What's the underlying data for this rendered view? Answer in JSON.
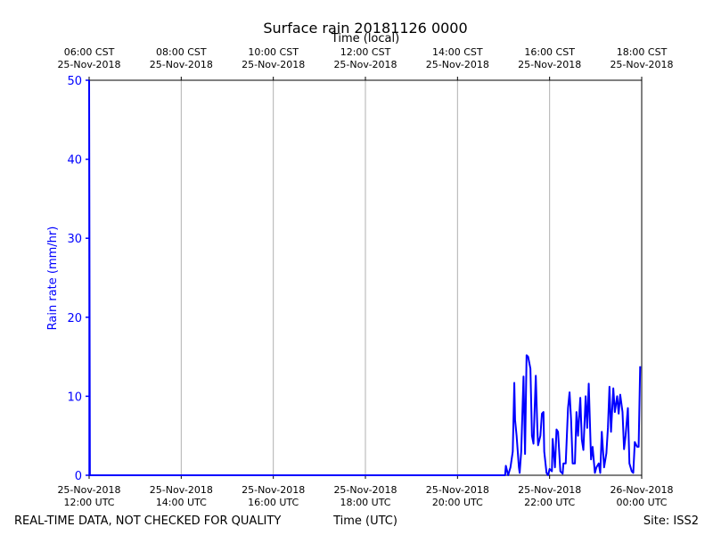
{
  "chart_data": {
    "type": "line",
    "title": "Surface rain 20181126 0000",
    "x_label": "Time (UTC)",
    "x2_label": "Time (local)",
    "y_label": "Rain rate (mm/hr)",
    "footer_left": "REAL-TIME DATA, NOT CHECKED FOR QUALITY",
    "footer_right": "Site: ISS2",
    "xlim": [
      "2018-11-25T12:00",
      "2018-11-26T00:00"
    ],
    "xticks": [
      {
        "value": "2018-11-25T12:00",
        "label": "25-Nov-2018\n12:00 UTC"
      },
      {
        "value": "2018-11-25T14:00",
        "label": "25-Nov-2018\n14:00 UTC"
      },
      {
        "value": "2018-11-25T16:00",
        "label": "25-Nov-2018\n16:00 UTC"
      },
      {
        "value": "2018-11-25T18:00",
        "label": "25-Nov-2018\n18:00 UTC"
      },
      {
        "value": "2018-11-25T20:00",
        "label": "25-Nov-2018\n20:00 UTC"
      },
      {
        "value": "2018-11-25T22:00",
        "label": "25-Nov-2018\n22:00 UTC"
      },
      {
        "value": "2018-11-26T00:00",
        "label": "26-Nov-2018\n00:00 UTC"
      }
    ],
    "x2ticks": [
      {
        "value": "2018-11-25T12:00",
        "label": "06:00 CST\n25-Nov-2018"
      },
      {
        "value": "2018-11-25T14:00",
        "label": "08:00 CST\n25-Nov-2018"
      },
      {
        "value": "2018-11-25T16:00",
        "label": "10:00 CST\n25-Nov-2018"
      },
      {
        "value": "2018-11-25T18:00",
        "label": "12:00 CST\n25-Nov-2018"
      },
      {
        "value": "2018-11-25T20:00",
        "label": "14:00 CST\n25-Nov-2018"
      },
      {
        "value": "2018-11-25T22:00",
        "label": "16:00 CST\n25-Nov-2018"
      },
      {
        "value": "2018-11-26T00:00",
        "label": "18:00 CST\n25-Nov-2018"
      }
    ],
    "ylim": [
      0,
      50
    ],
    "yticks": [
      0,
      10,
      20,
      30,
      40,
      50
    ],
    "grid": "x",
    "color": "#0000ff",
    "x": [
      "2018-11-25T12:00",
      "2018-11-25T12:01",
      "2018-11-25T21:02",
      "2018-11-25T21:03",
      "2018-11-25T21:06",
      "2018-11-25T21:09",
      "2018-11-25T21:12",
      "2018-11-25T21:14",
      "2018-11-25T21:15",
      "2018-11-25T21:17",
      "2018-11-25T21:20",
      "2018-11-25T21:21",
      "2018-11-25T21:23",
      "2018-11-25T21:26",
      "2018-11-25T21:28",
      "2018-11-25T21:30",
      "2018-11-25T21:32",
      "2018-11-25T21:35",
      "2018-11-25T21:37",
      "2018-11-25T21:39",
      "2018-11-25T21:42",
      "2018-11-25T21:44",
      "2018-11-25T21:45",
      "2018-11-25T21:48",
      "2018-11-25T21:50",
      "2018-11-25T21:52",
      "2018-11-25T21:53",
      "2018-11-25T21:56",
      "2018-11-25T21:58",
      "2018-11-25T22:00",
      "2018-11-25T22:03",
      "2018-11-25T22:04",
      "2018-11-25T22:07",
      "2018-11-25T22:09",
      "2018-11-25T22:11",
      "2018-11-25T22:14",
      "2018-11-25T22:17",
      "2018-11-25T22:18",
      "2018-11-25T22:21",
      "2018-11-25T22:24",
      "2018-11-25T22:26",
      "2018-11-25T22:28",
      "2018-11-25T22:30",
      "2018-11-25T22:33",
      "2018-11-25T22:35",
      "2018-11-25T22:37",
      "2018-11-25T22:40",
      "2018-11-25T22:42",
      "2018-11-25T22:44",
      "2018-11-25T22:47",
      "2018-11-25T22:49",
      "2018-11-25T22:51",
      "2018-11-25T22:54",
      "2018-11-25T22:56",
      "2018-11-25T22:59",
      "2018-11-25T23:01",
      "2018-11-25T23:04",
      "2018-11-25T23:06",
      "2018-11-25T23:08",
      "2018-11-25T23:11",
      "2018-11-25T23:14",
      "2018-11-25T23:16",
      "2018-11-25T23:18",
      "2018-11-25T23:20",
      "2018-11-25T23:23",
      "2018-11-25T23:25",
      "2018-11-25T23:28",
      "2018-11-25T23:30",
      "2018-11-25T23:32",
      "2018-11-25T23:35",
      "2018-11-25T23:37",
      "2018-11-25T23:39",
      "2018-11-25T23:42",
      "2018-11-25T23:44",
      "2018-11-25T23:47",
      "2018-11-25T23:49",
      "2018-11-25T23:51",
      "2018-11-25T23:54",
      "2018-11-25T23:56",
      "2018-11-25T23:58"
    ],
    "values": [
      50,
      0,
      0,
      1.2,
      0,
      1,
      3,
      11.7,
      7,
      5,
      1,
      0.3,
      3,
      12.5,
      2.7,
      15.2,
      15,
      13.5,
      5,
      4,
      12.6,
      6,
      3.8,
      5,
      7.8,
      8,
      3,
      0.3,
      0,
      0.8,
      0.5,
      4.6,
      1,
      5.8,
      5.5,
      0.5,
      0.2,
      1.5,
      1.5,
      8.5,
      10.5,
      7,
      1.5,
      1.5,
      8,
      5,
      9.8,
      4.5,
      3.2,
      10,
      6,
      11.6,
      2,
      3.6,
      0.3,
      1,
      1.5,
      0.3,
      5.5,
      1,
      2.8,
      6,
      11.2,
      5.5,
      11,
      8,
      10,
      7.8,
      10.2,
      8,
      3.3,
      5,
      8.5,
      1.5,
      0.5,
      0.3,
      4.2,
      3.6,
      3.6,
      13.8
    ]
  }
}
